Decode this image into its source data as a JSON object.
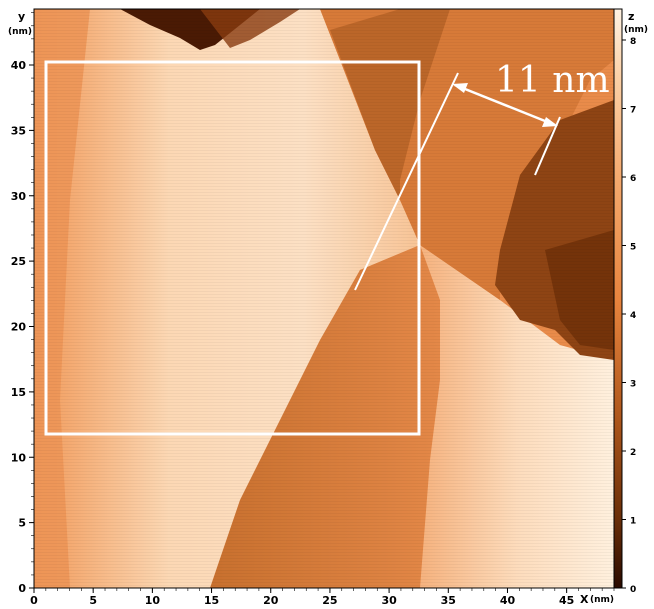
{
  "axes": {
    "y_label": "y",
    "y_unit": "(nm)",
    "x_label": "X",
    "x_unit": "(nm)",
    "x_ticks": [
      "0",
      "5",
      "10",
      "15",
      "20",
      "25",
      "30",
      "35",
      "40",
      "45"
    ],
    "y_ticks": [
      "0",
      "5",
      "10",
      "15",
      "20",
      "25",
      "30",
      "35",
      "40"
    ],
    "z_label": "z",
    "z_unit": "(nm)",
    "z_ticks": [
      "0",
      "1",
      "2",
      "3",
      "4",
      "5",
      "6",
      "7",
      "8"
    ]
  },
  "annotation": {
    "label": "11 nm"
  },
  "colors": {
    "light": "#fde3c9",
    "mid": "#f0a068",
    "orange": "#e88a48",
    "brown": "#c46a2a",
    "dark": "#7a3a10",
    "darkest": "#3a1404",
    "white": "#ffffff"
  }
}
